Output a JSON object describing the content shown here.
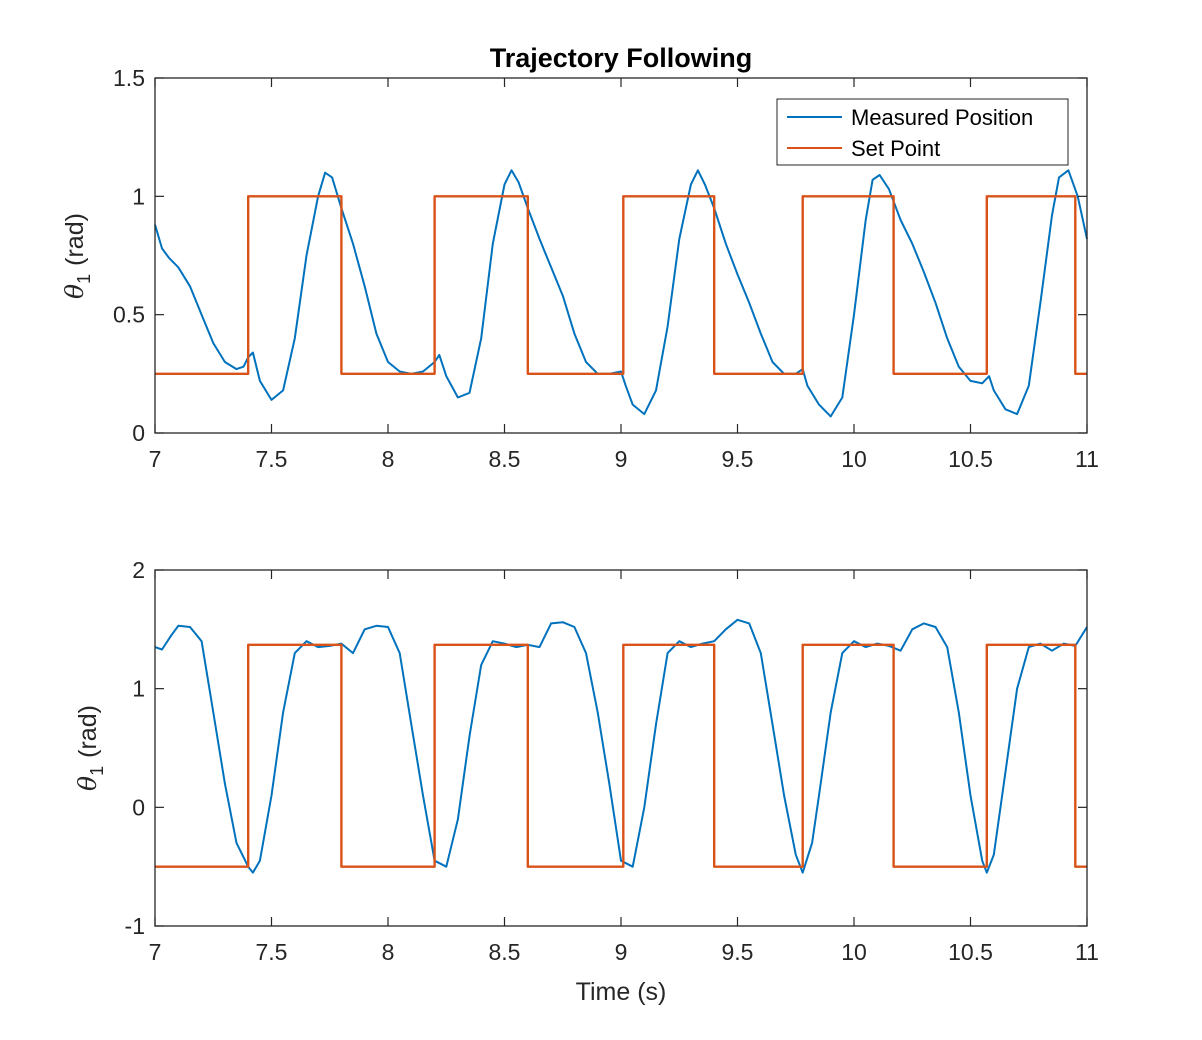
{
  "colors": {
    "measured": "#0072BD",
    "setpoint": "#D95319",
    "axes": "#262626",
    "background": "#ffffff"
  },
  "chart_data": [
    {
      "type": "line",
      "title": "Trajectory Following",
      "xlabel": "",
      "ylabel": {
        "symbol": "θ",
        "subscript": "1",
        "unit": "(rad)"
      },
      "xlim": [
        7,
        11
      ],
      "ylim": [
        0,
        1.5
      ],
      "xticks": [
        "7",
        "7.5",
        "8",
        "8.5",
        "9",
        "9.5",
        "10",
        "10.5",
        "11"
      ],
      "yticks": [
        "0",
        "0.5",
        "1",
        "1.5"
      ],
      "legend": {
        "location": "top-right",
        "entries": [
          "Measured Position",
          "Set Point"
        ]
      },
      "series": [
        {
          "name": "Measured Position",
          "x": [
            7.0,
            7.03,
            7.06,
            7.1,
            7.15,
            7.2,
            7.25,
            7.3,
            7.35,
            7.38,
            7.4,
            7.42,
            7.45,
            7.5,
            7.55,
            7.6,
            7.65,
            7.7,
            7.73,
            7.76,
            7.8,
            7.85,
            7.9,
            7.95,
            8.0,
            8.05,
            8.1,
            8.15,
            8.2,
            8.22,
            8.25,
            8.3,
            8.35,
            8.4,
            8.45,
            8.5,
            8.53,
            8.56,
            8.6,
            8.65,
            8.7,
            8.75,
            8.8,
            8.85,
            8.9,
            8.95,
            9.0,
            9.02,
            9.05,
            9.1,
            9.15,
            9.2,
            9.25,
            9.3,
            9.33,
            9.36,
            9.4,
            9.45,
            9.5,
            9.55,
            9.6,
            9.65,
            9.7,
            9.75,
            9.78,
            9.8,
            9.85,
            9.9,
            9.95,
            10.0,
            10.05,
            10.08,
            10.11,
            10.15,
            10.2,
            10.25,
            10.3,
            10.35,
            10.4,
            10.45,
            10.5,
            10.55,
            10.58,
            10.6,
            10.65,
            10.7,
            10.75,
            10.8,
            10.85,
            10.88,
            10.92,
            10.96,
            11.0
          ],
          "y": [
            0.88,
            0.78,
            0.74,
            0.7,
            0.62,
            0.5,
            0.38,
            0.3,
            0.27,
            0.28,
            0.32,
            0.34,
            0.22,
            0.14,
            0.18,
            0.4,
            0.75,
            1.0,
            1.1,
            1.08,
            0.95,
            0.8,
            0.62,
            0.42,
            0.3,
            0.26,
            0.25,
            0.26,
            0.3,
            0.33,
            0.24,
            0.15,
            0.17,
            0.4,
            0.8,
            1.05,
            1.11,
            1.06,
            0.95,
            0.82,
            0.7,
            0.58,
            0.42,
            0.3,
            0.25,
            0.25,
            0.26,
            0.2,
            0.12,
            0.08,
            0.18,
            0.45,
            0.82,
            1.05,
            1.11,
            1.05,
            0.95,
            0.8,
            0.67,
            0.55,
            0.42,
            0.3,
            0.25,
            0.25,
            0.27,
            0.2,
            0.12,
            0.07,
            0.15,
            0.5,
            0.9,
            1.07,
            1.09,
            1.03,
            0.9,
            0.8,
            0.68,
            0.55,
            0.4,
            0.28,
            0.22,
            0.21,
            0.24,
            0.18,
            0.1,
            0.08,
            0.2,
            0.55,
            0.92,
            1.08,
            1.11,
            1.0,
            0.82
          ]
        },
        {
          "name": "Set Point",
          "x": [
            7.0,
            7.4,
            7.4,
            7.8,
            7.8,
            8.2,
            8.2,
            8.6,
            8.6,
            9.01,
            9.01,
            9.4,
            9.4,
            9.78,
            9.78,
            10.17,
            10.17,
            10.57,
            10.57,
            10.95,
            10.95,
            11.0
          ],
          "y": [
            0.25,
            0.25,
            1.0,
            1.0,
            0.25,
            0.25,
            1.0,
            1.0,
            0.25,
            0.25,
            1.0,
            1.0,
            0.25,
            0.25,
            1.0,
            1.0,
            0.25,
            0.25,
            1.0,
            1.0,
            0.25,
            0.25
          ]
        }
      ]
    },
    {
      "type": "line",
      "title": "",
      "xlabel": "Time (s)",
      "ylabel": {
        "symbol": "θ",
        "subscript": "1",
        "unit": "(rad)"
      },
      "xlim": [
        7,
        11
      ],
      "ylim": [
        -1,
        2
      ],
      "xticks": [
        "7",
        "7.5",
        "8",
        "8.5",
        "9",
        "9.5",
        "10",
        "10.5",
        "11"
      ],
      "yticks": [
        "-1",
        "0",
        "1",
        "2"
      ],
      "legend": null,
      "series": [
        {
          "name": "Measured Position",
          "x": [
            7.0,
            7.03,
            7.07,
            7.1,
            7.15,
            7.2,
            7.25,
            7.3,
            7.35,
            7.4,
            7.42,
            7.45,
            7.5,
            7.55,
            7.6,
            7.65,
            7.7,
            7.75,
            7.8,
            7.85,
            7.9,
            7.95,
            8.0,
            8.05,
            8.1,
            8.15,
            8.2,
            8.25,
            8.3,
            8.35,
            8.4,
            8.45,
            8.5,
            8.55,
            8.6,
            8.65,
            8.7,
            8.75,
            8.8,
            8.85,
            8.9,
            8.95,
            9.0,
            9.05,
            9.1,
            9.15,
            9.2,
            9.25,
            9.3,
            9.35,
            9.4,
            9.45,
            9.5,
            9.55,
            9.6,
            9.65,
            9.7,
            9.75,
            9.78,
            9.82,
            9.85,
            9.9,
            9.95,
            10.0,
            10.05,
            10.1,
            10.15,
            10.2,
            10.25,
            10.3,
            10.35,
            10.4,
            10.45,
            10.5,
            10.55,
            10.57,
            10.6,
            10.65,
            10.7,
            10.75,
            10.8,
            10.85,
            10.9,
            10.95,
            11.0
          ],
          "y": [
            1.35,
            1.33,
            1.45,
            1.53,
            1.52,
            1.4,
            0.8,
            0.2,
            -0.3,
            -0.5,
            -0.55,
            -0.45,
            0.1,
            0.8,
            1.3,
            1.4,
            1.35,
            1.36,
            1.38,
            1.3,
            1.5,
            1.53,
            1.52,
            1.3,
            0.7,
            0.1,
            -0.45,
            -0.5,
            -0.1,
            0.6,
            1.2,
            1.4,
            1.38,
            1.35,
            1.37,
            1.35,
            1.55,
            1.56,
            1.52,
            1.3,
            0.8,
            0.2,
            -0.45,
            -0.5,
            0.0,
            0.7,
            1.3,
            1.4,
            1.35,
            1.38,
            1.4,
            1.5,
            1.58,
            1.55,
            1.3,
            0.7,
            0.1,
            -0.4,
            -0.55,
            -0.3,
            0.1,
            0.8,
            1.3,
            1.4,
            1.35,
            1.38,
            1.36,
            1.32,
            1.5,
            1.55,
            1.52,
            1.35,
            0.8,
            0.1,
            -0.45,
            -0.55,
            -0.4,
            0.3,
            1.0,
            1.35,
            1.38,
            1.32,
            1.38,
            1.36,
            1.52
          ]
        },
        {
          "name": "Set Point",
          "x": [
            7.0,
            7.4,
            7.4,
            7.8,
            7.8,
            8.2,
            8.2,
            8.6,
            8.6,
            9.01,
            9.01,
            9.4,
            9.4,
            9.78,
            9.78,
            10.17,
            10.17,
            10.57,
            10.57,
            10.95,
            10.95,
            11.0
          ],
          "y": [
            -0.5,
            -0.5,
            1.37,
            1.37,
            -0.5,
            -0.5,
            1.37,
            1.37,
            -0.5,
            -0.5,
            1.37,
            1.37,
            -0.5,
            -0.5,
            1.37,
            1.37,
            -0.5,
            -0.5,
            1.37,
            1.37,
            -0.5,
            -0.5
          ]
        }
      ]
    }
  ]
}
